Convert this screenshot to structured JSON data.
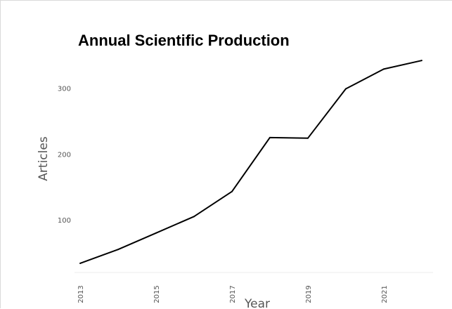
{
  "chart_data": {
    "type": "line",
    "title": "Annual Scientific Production",
    "xlabel": "Year",
    "ylabel": "Articles",
    "x_tick_labels": [
      "2013",
      "2015",
      "2017",
      "2019",
      "2021"
    ],
    "y_tick_labels": [
      "100",
      "200",
      "300"
    ],
    "xlim": [
      2012.85,
      2022.3
    ],
    "ylim": [
      20,
      355
    ],
    "grid": false,
    "legend": "none",
    "line_color": "#000000",
    "series": [
      {
        "x": [
          2013,
          2014,
          2015,
          2016,
          2017,
          2018,
          2019,
          2020,
          2021,
          2022
        ],
        "values": [
          34,
          55,
          80,
          105,
          143,
          225,
          224,
          299,
          329,
          342
        ]
      }
    ]
  }
}
